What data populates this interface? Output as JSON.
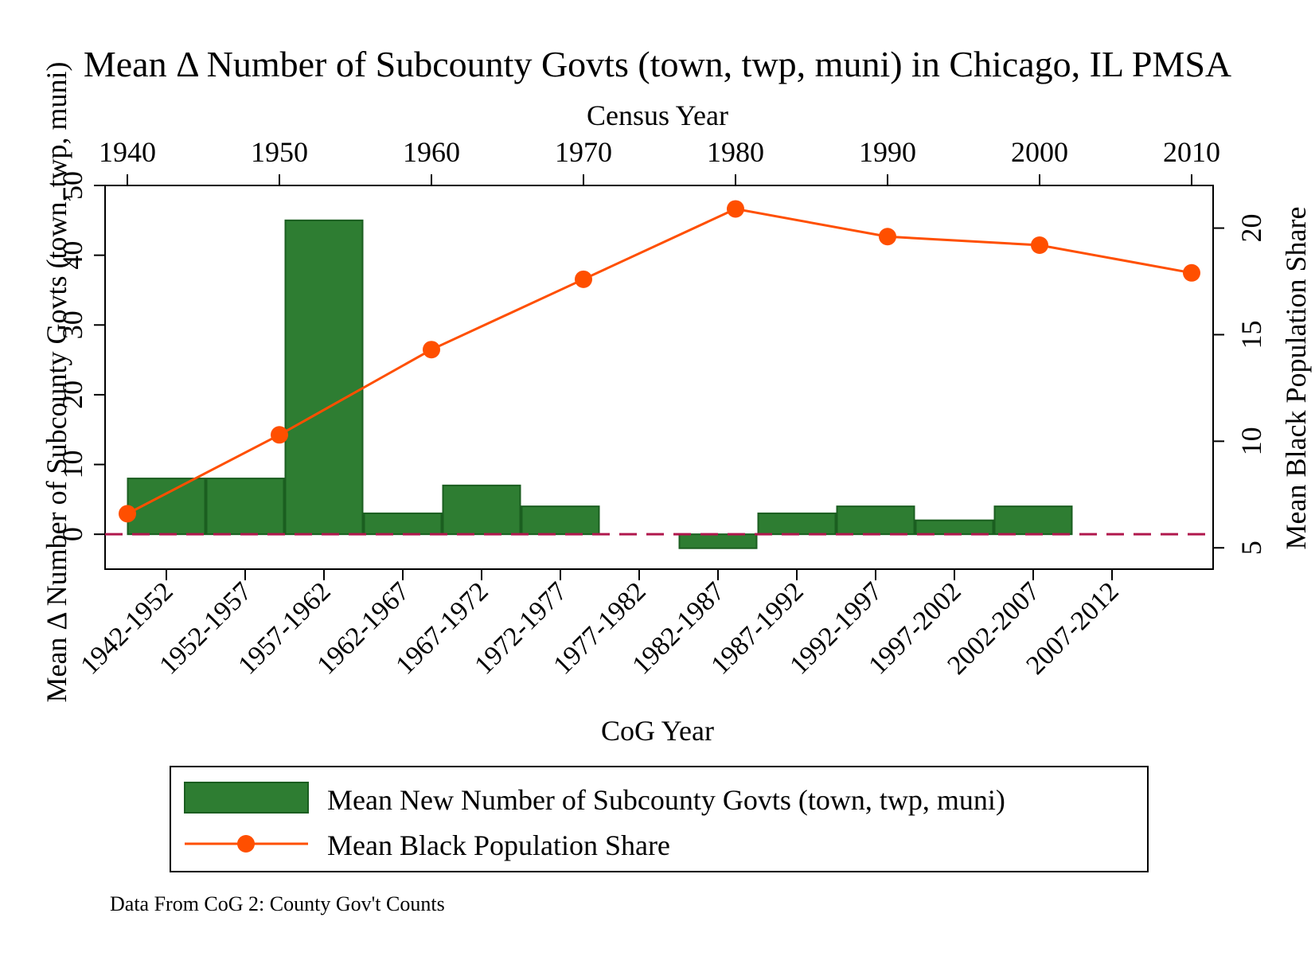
{
  "chart_data": {
    "type": "bar",
    "title": "Mean Δ Number of Subcounty Govts (town, twp, muni) in Chicago, IL PMSA",
    "top_axis": {
      "label": "Census Year",
      "ticks": [
        "1940",
        "1950",
        "1960",
        "1970",
        "1980",
        "1990",
        "2000",
        "2010"
      ],
      "range": [
        1940,
        2010
      ]
    },
    "xlabel": "CoG Year",
    "ylabel_left": "Mean Δ Number of Subcounty Govts (town, twp, muni)",
    "ylabel_right": "Mean Black Population Share",
    "ylim_left": [
      -5,
      50
    ],
    "yticks_left": [
      "0",
      "10",
      "20",
      "30",
      "40",
      "50"
    ],
    "ylim_right": [
      4,
      22
    ],
    "yticks_right": [
      "5",
      "10",
      "15",
      "20"
    ],
    "grid": false,
    "legend_position": "bottom",
    "categories": [
      "1942-1952",
      "1952-1957",
      "1957-1962",
      "1962-1967",
      "1967-1972",
      "1972-1977",
      "1977-1982",
      "1982-1987",
      "1987-1992",
      "1992-1997",
      "1997-2002",
      "2002-2007",
      "2007-2012"
    ],
    "series": [
      {
        "name": "Mean New Number of Subcounty Govts (town, twp, muni)",
        "type": "bar",
        "axis": "left",
        "color": "#2e7d32",
        "edge_color": "#1b5e20",
        "values": [
          8,
          8,
          45,
          3,
          7,
          4,
          null,
          -2,
          3,
          4,
          2,
          4,
          null
        ]
      },
      {
        "name": "Mean Black Population Share",
        "type": "line",
        "axis": "right",
        "color": "#ff4f00",
        "x": [
          1940,
          1950,
          1960,
          1970,
          1980,
          1990,
          2000,
          2010
        ],
        "values": [
          6.6,
          10.3,
          14.3,
          17.6,
          20.9,
          19.6,
          19.2,
          17.9
        ]
      }
    ],
    "reference_line": {
      "value": 0,
      "axis": "left",
      "style": "dashed",
      "color": "#b0174c"
    },
    "note": "Data From CoG 2: County Gov't Counts"
  }
}
